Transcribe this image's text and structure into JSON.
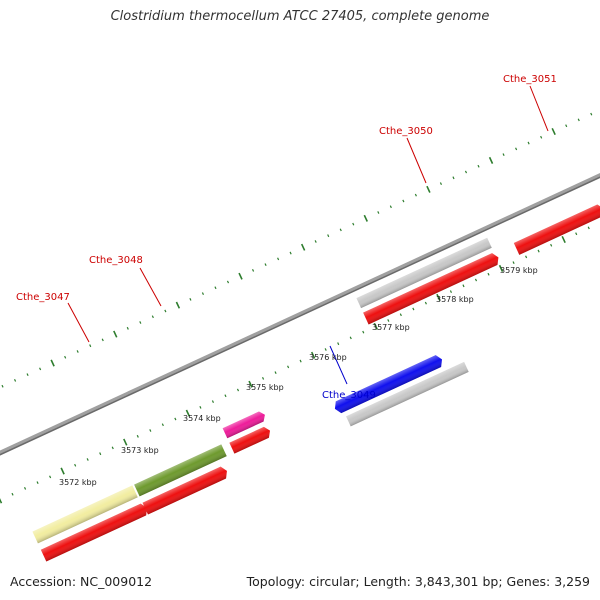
{
  "title": "Clostridium thermocellum ATCC 27405, complete genome",
  "footer": {
    "accession": "Accession: NC_009012",
    "summary": "Topology: circular; Length: 3,843,301 bp; Genes: 3,259"
  },
  "colors": {
    "backbone": "#808080",
    "tick": "#2e7d2e",
    "label_red": "#cc0000",
    "label_blue": "#0000cc"
  },
  "kbp_labels": [
    "3572 kbp",
    "3573 kbp",
    "3574 kbp",
    "3575 kbp",
    "3576 kbp",
    "3577 kbp",
    "3578 kbp",
    "3579 kbp"
  ],
  "genes": [
    {
      "name": "",
      "color": "#f2eda0",
      "strand": "+"
    },
    {
      "name": "Cthe_3047",
      "color": "#6e9a2e",
      "strand": "+",
      "label_color": "#cc0000"
    },
    {
      "name": "Cthe_3048",
      "color": "#ee1c9a",
      "strand": "+",
      "label_color": "#cc0000"
    },
    {
      "name": "Cthe_3049",
      "color": "#1010ee",
      "strand": "+",
      "label_color": "#0000cc"
    },
    {
      "name": "Cthe_3050",
      "color": "#c8c8c8",
      "strand": "+",
      "label_color": "#cc0000"
    },
    {
      "name": "Cthe_3051",
      "color": "#ee1010",
      "strand": "-",
      "label_color": "#cc0000"
    }
  ]
}
